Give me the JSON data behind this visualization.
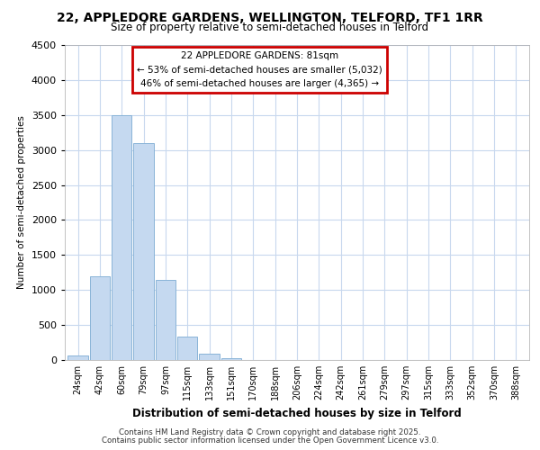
{
  "title1": "22, APPLEDORE GARDENS, WELLINGTON, TELFORD, TF1 1RR",
  "title2": "Size of property relative to semi-detached houses in Telford",
  "xlabel": "Distribution of semi-detached houses by size in Telford",
  "ylabel": "Number of semi-detached properties",
  "categories": [
    "24sqm",
    "42sqm",
    "60sqm",
    "79sqm",
    "97sqm",
    "115sqm",
    "133sqm",
    "151sqm",
    "170sqm",
    "188sqm",
    "206sqm",
    "224sqm",
    "242sqm",
    "261sqm",
    "279sqm",
    "297sqm",
    "315sqm",
    "333sqm",
    "352sqm",
    "370sqm",
    "388sqm"
  ],
  "values": [
    60,
    1200,
    3500,
    3100,
    1150,
    340,
    90,
    30,
    5,
    2,
    1,
    1,
    0,
    0,
    0,
    0,
    0,
    0,
    0,
    0,
    0
  ],
  "bar_color": "#c5d9f0",
  "bar_edge_color": "#8ab4d8",
  "annotation_title": "22 APPLEDORE GARDENS: 81sqm",
  "annotation_line1": "← 53% of semi-detached houses are smaller (5,032)",
  "annotation_line2": "46% of semi-detached houses are larger (4,365) →",
  "annotation_box_facecolor": "#ffffff",
  "annotation_box_edgecolor": "#cc0000",
  "ylim": [
    0,
    4500
  ],
  "yticks": [
    0,
    500,
    1000,
    1500,
    2000,
    2500,
    3000,
    3500,
    4000,
    4500
  ],
  "fig_bg_color": "#ffffff",
  "plot_bg_color": "#ffffff",
  "grid_color": "#c8d8ee",
  "footer1": "Contains HM Land Registry data © Crown copyright and database right 2025.",
  "footer2": "Contains public sector information licensed under the Open Government Licence v3.0."
}
